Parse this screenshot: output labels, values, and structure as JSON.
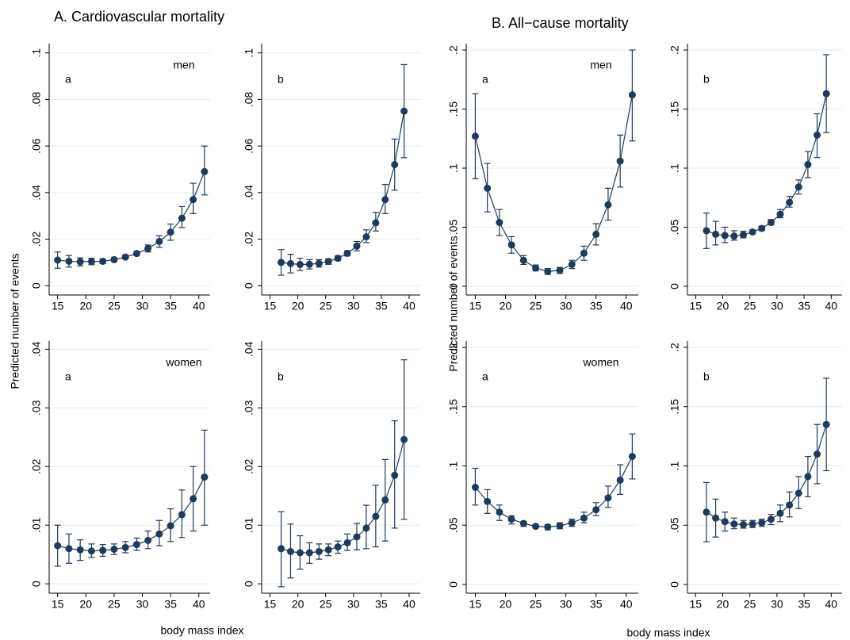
{
  "titles": [
    "A. Cardiovascular mortality",
    "B. All−cause mortality"
  ],
  "y_label": "Predicted number of events",
  "x_label": "body mass index",
  "chart_data": [
    {
      "type": "line",
      "letter": "a",
      "annotation": "men",
      "grid": true,
      "x": [
        15,
        17,
        19,
        21,
        23,
        25,
        27,
        29,
        31,
        33,
        35,
        37,
        39,
        41
      ],
      "xlim": [
        13.5,
        42
      ],
      "xticks": [
        15,
        20,
        25,
        30,
        35,
        40
      ],
      "ylim": [
        -0.004,
        0.104
      ],
      "yticks": [
        0,
        {
          "value": 0.02,
          "label": ".02"
        },
        {
          "value": 0.04,
          "label": ".04"
        },
        {
          "value": 0.06,
          "label": ".06"
        },
        {
          "value": 0.08,
          "label": ".08"
        },
        {
          "value": 0.1,
          "label": ".1"
        }
      ],
      "series": [
        {
          "color": "#1f3a5a",
          "values": [
            0.011,
            0.0105,
            0.0103,
            0.0104,
            0.0105,
            0.0112,
            0.0123,
            0.0138,
            0.016,
            0.019,
            0.023,
            0.029,
            0.037,
            0.049
          ],
          "ci_low": [
            0.0075,
            0.008,
            0.0085,
            0.009,
            0.0095,
            0.0105,
            0.0115,
            0.013,
            0.0145,
            0.0165,
            0.0195,
            0.025,
            0.031,
            0.039
          ],
          "ci_high": [
            0.0145,
            0.013,
            0.012,
            0.0118,
            0.0115,
            0.012,
            0.0132,
            0.0148,
            0.0175,
            0.0215,
            0.0265,
            0.034,
            0.044,
            0.06
          ]
        }
      ]
    },
    {
      "type": "line",
      "letter": "b",
      "grid": true,
      "x": [
        17,
        18.7,
        20.4,
        22.1,
        23.8,
        25.5,
        27.2,
        28.9,
        30.6,
        32.3,
        34,
        35.7,
        37.4,
        39.1
      ],
      "xlim": [
        13.5,
        42
      ],
      "xticks": [
        15,
        20,
        25,
        30,
        35,
        40
      ],
      "ylim": [
        -0.004,
        0.104
      ],
      "yticks": [
        0,
        {
          "value": 0.02,
          "label": ".02"
        },
        {
          "value": 0.04,
          "label": ".04"
        },
        {
          "value": 0.06,
          "label": ".06"
        },
        {
          "value": 0.08,
          "label": ".08"
        },
        {
          "value": 0.1,
          "label": ".1"
        }
      ],
      "series": [
        {
          "color": "#1f3a5a",
          "values": [
            0.01,
            0.0095,
            0.0091,
            0.0092,
            0.0096,
            0.0104,
            0.0118,
            0.0139,
            0.017,
            0.021,
            0.027,
            0.037,
            0.052,
            0.075
          ],
          "ci_low": [
            0.0045,
            0.0055,
            0.0065,
            0.0072,
            0.008,
            0.0092,
            0.0108,
            0.0128,
            0.015,
            0.0185,
            0.0235,
            0.031,
            0.041,
            0.055
          ],
          "ci_high": [
            0.0155,
            0.0135,
            0.0118,
            0.0112,
            0.0112,
            0.0116,
            0.0128,
            0.015,
            0.019,
            0.024,
            0.0315,
            0.0435,
            0.063,
            0.095
          ]
        }
      ]
    },
    {
      "type": "line",
      "letter": "a",
      "annotation": "men",
      "grid": true,
      "x": [
        15,
        17,
        19,
        21,
        23,
        25,
        27,
        29,
        31,
        33,
        35,
        37,
        39,
        41
      ],
      "xlim": [
        13.5,
        42
      ],
      "xticks": [
        15,
        20,
        25,
        30,
        35,
        40
      ],
      "ylim": [
        -0.0074,
        0.2054
      ],
      "yticks": [
        0,
        {
          "value": 0.05,
          "label": ".05"
        },
        {
          "value": 0.1,
          "label": ".1"
        },
        {
          "value": 0.15,
          "label": ".15"
        },
        {
          "value": 0.2,
          "label": ".2"
        }
      ],
      "series": [
        {
          "color": "#1f3a5a",
          "values": [
            0.127,
            0.083,
            0.054,
            0.035,
            0.022,
            0.0155,
            0.0125,
            0.0135,
            0.0185,
            0.028,
            0.044,
            0.069,
            0.106,
            0.162
          ],
          "ci_low": [
            0.091,
            0.063,
            0.043,
            0.028,
            0.0185,
            0.013,
            0.01,
            0.011,
            0.015,
            0.022,
            0.035,
            0.056,
            0.084,
            0.123
          ],
          "ci_high": [
            0.163,
            0.104,
            0.065,
            0.042,
            0.026,
            0.018,
            0.015,
            0.016,
            0.022,
            0.034,
            0.053,
            0.083,
            0.128,
            0.2
          ]
        }
      ]
    },
    {
      "type": "line",
      "letter": "b",
      "grid": true,
      "x": [
        17,
        18.7,
        20.4,
        22.1,
        23.8,
        25.5,
        27.2,
        28.9,
        30.6,
        32.3,
        34,
        35.7,
        37.4,
        39.1
      ],
      "xlim": [
        13.5,
        42
      ],
      "xticks": [
        15,
        20,
        25,
        30,
        35,
        40
      ],
      "ylim": [
        -0.0074,
        0.2054
      ],
      "yticks": [
        0,
        {
          "value": 0.05,
          "label": ".05"
        },
        {
          "value": 0.1,
          "label": ".1"
        },
        {
          "value": 0.15,
          "label": ".15"
        },
        {
          "value": 0.2,
          "label": ".2"
        }
      ],
      "series": [
        {
          "color": "#1f3a5a",
          "values": [
            0.047,
            0.044,
            0.043,
            0.0425,
            0.0435,
            0.046,
            0.049,
            0.054,
            0.061,
            0.071,
            0.084,
            0.103,
            0.128,
            0.163
          ],
          "ci_low": [
            0.032,
            0.035,
            0.037,
            0.039,
            0.041,
            0.0445,
            0.047,
            0.052,
            0.058,
            0.067,
            0.078,
            0.092,
            0.109,
            0.13
          ],
          "ci_high": [
            0.062,
            0.055,
            0.05,
            0.047,
            0.0465,
            0.0475,
            0.051,
            0.0565,
            0.065,
            0.076,
            0.09,
            0.114,
            0.146,
            0.196
          ]
        }
      ]
    },
    {
      "type": "line",
      "letter": "a",
      "annotation": "women",
      "grid": true,
      "x": [
        15,
        17,
        19,
        21,
        23,
        25,
        27,
        29,
        31,
        33,
        35,
        37,
        39,
        41
      ],
      "xlim": [
        13.5,
        42
      ],
      "xticks": [
        15,
        20,
        25,
        30,
        35,
        40
      ],
      "ylim": [
        -0.0016,
        0.0414
      ],
      "yticks": [
        0,
        {
          "value": 0.01,
          "label": ".01"
        },
        {
          "value": 0.02,
          "label": ".02"
        },
        {
          "value": 0.03,
          "label": ".03"
        },
        {
          "value": 0.04,
          "label": ".04"
        }
      ],
      "series": [
        {
          "color": "#1f3a5a",
          "values": [
            0.0065,
            0.006,
            0.0058,
            0.0056,
            0.0057,
            0.0059,
            0.0062,
            0.0067,
            0.0074,
            0.0085,
            0.0099,
            0.0118,
            0.0145,
            0.0182
          ],
          "ci_low": [
            0.003,
            0.0035,
            0.004,
            0.0045,
            0.0047,
            0.005,
            0.0053,
            0.0057,
            0.006,
            0.0065,
            0.0072,
            0.0079,
            0.009,
            0.01
          ],
          "ci_high": [
            0.01,
            0.0085,
            0.0075,
            0.0068,
            0.0067,
            0.0068,
            0.0072,
            0.0078,
            0.009,
            0.0108,
            0.0128,
            0.016,
            0.02,
            0.0262
          ]
        }
      ]
    },
    {
      "type": "line",
      "letter": "b",
      "grid": true,
      "x": [
        17,
        18.7,
        20.4,
        22.1,
        23.8,
        25.5,
        27.2,
        28.9,
        30.6,
        32.3,
        34,
        35.7,
        37.4,
        39.1
      ],
      "xlim": [
        13.5,
        42
      ],
      "xticks": [
        15,
        20,
        25,
        30,
        35,
        40
      ],
      "ylim": [
        -0.0016,
        0.0414
      ],
      "yticks": [
        0,
        {
          "value": 0.01,
          "label": ".01"
        },
        {
          "value": 0.02,
          "label": ".02"
        },
        {
          "value": 0.03,
          "label": ".03"
        },
        {
          "value": 0.04,
          "label": ".04"
        }
      ],
      "series": [
        {
          "color": "#1f3a5a",
          "values": [
            0.006,
            0.0055,
            0.0053,
            0.0053,
            0.0055,
            0.0058,
            0.0063,
            0.007,
            0.008,
            0.0095,
            0.0115,
            0.0143,
            0.0185,
            0.0246
          ],
          "ci_low": [
            -0.0005,
            0.001,
            0.0025,
            0.0035,
            0.0042,
            0.0048,
            0.0052,
            0.0057,
            0.0058,
            0.006,
            0.0063,
            0.0073,
            0.0095,
            0.011
          ],
          "ci_high": [
            0.0123,
            0.0102,
            0.0082,
            0.007,
            0.0068,
            0.0068,
            0.0073,
            0.0085,
            0.0103,
            0.0134,
            0.0168,
            0.0212,
            0.0278,
            0.0382
          ]
        }
      ]
    },
    {
      "type": "line",
      "letter": "a",
      "annotation": "women",
      "grid": true,
      "x": [
        15,
        17,
        19,
        21,
        23,
        25,
        27,
        29,
        31,
        33,
        35,
        37,
        39,
        41
      ],
      "xlim": [
        13.5,
        42
      ],
      "xticks": [
        15,
        20,
        25,
        30,
        35,
        40
      ],
      "ylim": [
        -0.0074,
        0.2054
      ],
      "yticks": [
        0,
        {
          "value": 0.05,
          "label": ".05"
        },
        {
          "value": 0.1,
          "label": ".1"
        },
        {
          "value": 0.15,
          "label": ".15"
        },
        {
          "value": 0.2,
          "label": ".2"
        }
      ],
      "series": [
        {
          "color": "#1f3a5a",
          "values": [
            0.082,
            0.07,
            0.061,
            0.055,
            0.0515,
            0.049,
            0.0485,
            0.0495,
            0.052,
            0.056,
            0.063,
            0.073,
            0.088,
            0.108
          ],
          "ci_low": [
            0.067,
            0.06,
            0.054,
            0.051,
            0.049,
            0.0475,
            0.046,
            0.047,
            0.049,
            0.052,
            0.058,
            0.065,
            0.076,
            0.089
          ],
          "ci_high": [
            0.098,
            0.08,
            0.067,
            0.058,
            0.053,
            0.0505,
            0.0505,
            0.052,
            0.055,
            0.061,
            0.069,
            0.083,
            0.101,
            0.127
          ]
        }
      ]
    },
    {
      "type": "line",
      "letter": "b",
      "grid": true,
      "x": [
        17,
        18.7,
        20.4,
        22.1,
        23.8,
        25.5,
        27.2,
        28.9,
        30.6,
        32.3,
        34,
        35.7,
        37.4,
        39.1
      ],
      "xlim": [
        13.5,
        42
      ],
      "xticks": [
        15,
        20,
        25,
        30,
        35,
        40
      ],
      "ylim": [
        -0.0074,
        0.2054
      ],
      "yticks": [
        0,
        {
          "value": 0.05,
          "label": ".05"
        },
        {
          "value": 0.1,
          "label": ".1"
        },
        {
          "value": 0.15,
          "label": ".15"
        },
        {
          "value": 0.2,
          "label": ".2"
        }
      ],
      "series": [
        {
          "color": "#1f3a5a",
          "values": [
            0.061,
            0.056,
            0.053,
            0.051,
            0.0505,
            0.051,
            0.052,
            0.055,
            0.06,
            0.067,
            0.077,
            0.091,
            0.11,
            0.135
          ],
          "ci_low": [
            0.036,
            0.04,
            0.045,
            0.047,
            0.0475,
            0.048,
            0.049,
            0.0505,
            0.053,
            0.057,
            0.064,
            0.074,
            0.085,
            0.096
          ],
          "ci_high": [
            0.086,
            0.072,
            0.061,
            0.056,
            0.054,
            0.054,
            0.055,
            0.059,
            0.067,
            0.078,
            0.091,
            0.108,
            0.135,
            0.174
          ]
        }
      ]
    }
  ]
}
